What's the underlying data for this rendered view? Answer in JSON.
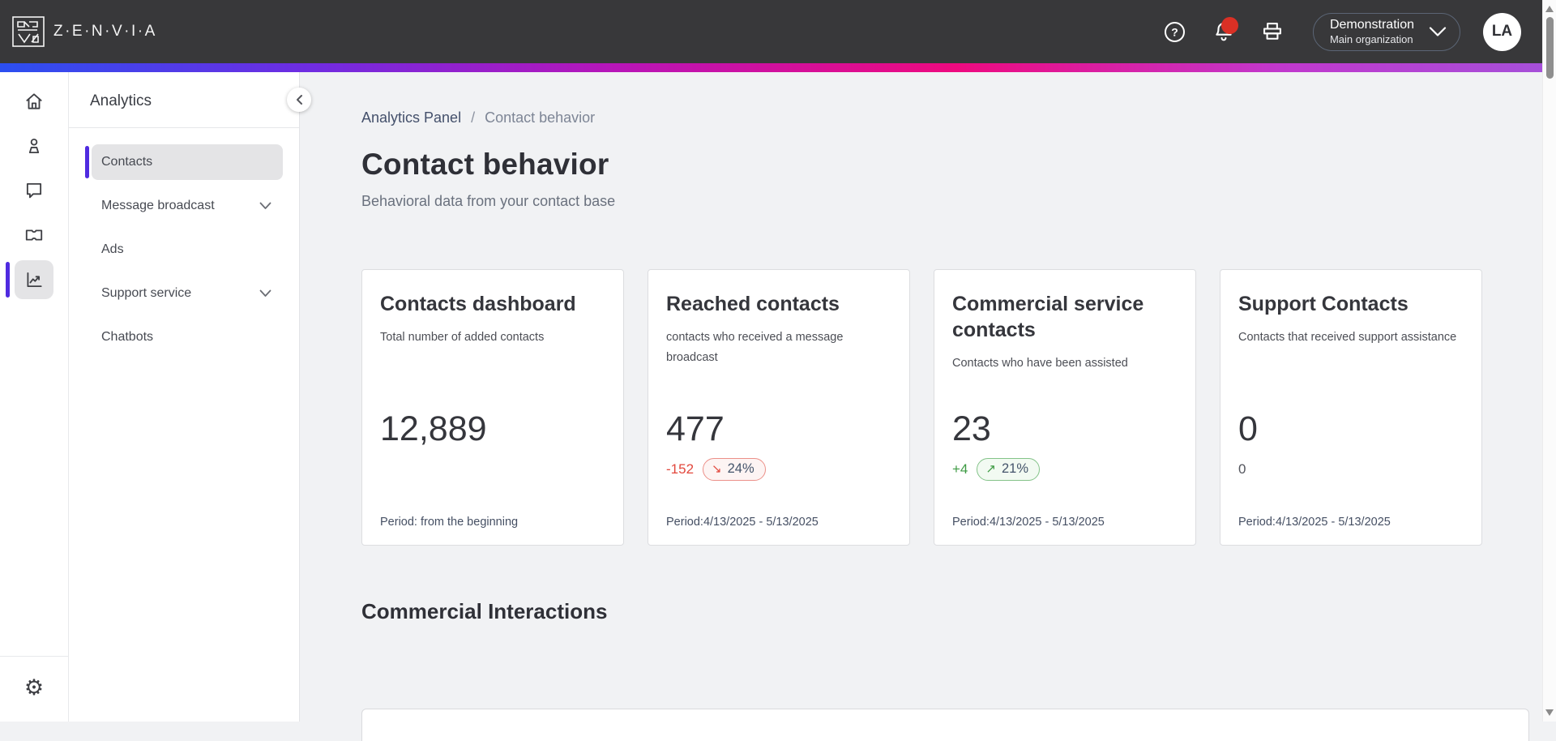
{
  "topbar": {
    "brand": "Z·E·N·V·I·A",
    "org": {
      "name": "Demonstration",
      "suborg": "Main organization"
    },
    "avatar_initials": "LA",
    "icons": [
      "help-icon",
      "bell-icon",
      "printer-icon"
    ],
    "help_glyph": "?"
  },
  "rail": {
    "items": [
      "home-icon",
      "person-icon",
      "chat-icon",
      "ticket-icon",
      "line-chart-icon"
    ],
    "active_index": 4,
    "bottom_icon": "gear-icon",
    "gear_glyph": "⚙"
  },
  "sidebar": {
    "title": "Analytics",
    "items": [
      {
        "label": "Contacts",
        "active": true,
        "expandable": false
      },
      {
        "label": "Message broadcast",
        "active": false,
        "expandable": true
      },
      {
        "label": "Ads",
        "active": false,
        "expandable": false
      },
      {
        "label": "Support service",
        "active": false,
        "expandable": true
      },
      {
        "label": "Chatbots",
        "active": false,
        "expandable": false
      }
    ]
  },
  "breadcrumb": {
    "parent": "Analytics Panel",
    "separator": "/",
    "current": "Contact behavior"
  },
  "page": {
    "title": "Contact behavior",
    "subtitle": "Behavioral data from your contact base"
  },
  "cards": [
    {
      "title": "Contacts dashboard",
      "subtitle": "Total number of added contacts",
      "value": "12,889",
      "period": "Period: from the beginning"
    },
    {
      "title": "Reached contacts",
      "subtitle": "contacts who received a message broadcast",
      "value": "477",
      "delta": "-152",
      "delta_pct": "24%",
      "trend": "down",
      "period": "Period:4/13/2025 - 5/13/2025"
    },
    {
      "title": "Commercial service contacts",
      "subtitle": "Contacts who have been assisted",
      "value": "23",
      "delta": "+4",
      "delta_pct": "21%",
      "trend": "up",
      "period": "Period:4/13/2025 - 5/13/2025"
    },
    {
      "title": "Support Contacts",
      "subtitle": "Contacts that received support assistance",
      "value": "0",
      "secondary_value": "0",
      "period": "Period:4/13/2025 - 5/13/2025"
    }
  ],
  "section": {
    "title": "Commercial Interactions"
  },
  "glyphs": {
    "trend_up": "↗",
    "trend_down": "↘"
  },
  "colors": {
    "accent_purple": "#4f2be0",
    "negative_red": "#e2483d",
    "positive_green": "#3d9a43",
    "percent_text": "#44546b",
    "notification_badge": "#d93025",
    "topbar_bg": "#38383a"
  }
}
